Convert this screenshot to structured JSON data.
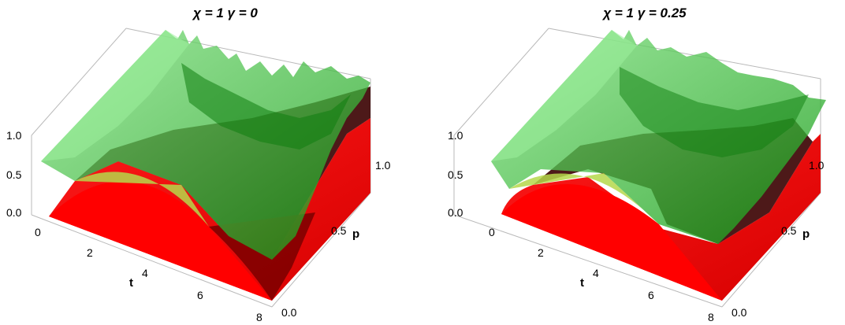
{
  "chart_data": [
    {
      "type": "surface3d",
      "title": "χ = 1 γ = 0",
      "xlabel": "t",
      "ylabel": "p",
      "zlabel": "",
      "xlim": [
        0,
        8
      ],
      "ylim": [
        0,
        1
      ],
      "zlim": [
        0,
        1
      ],
      "x_ticks": [
        "0",
        "2",
        "4",
        "6",
        "8"
      ],
      "y_ticks": [
        "0.0",
        "0.5",
        "1.0"
      ],
      "z_ticks": [
        "0.0",
        "0.5",
        "1.0"
      ],
      "series": [
        {
          "name": "",
          "color": "#1fc01f",
          "opacity": 0.6,
          "sample_t": [
            0,
            2,
            4,
            6,
            8
          ],
          "sample_p0_height": [
            0.72,
            0.68,
            0.64,
            0.6,
            0.55
          ],
          "sample_p1_height": [
            1.0,
            0.98,
            0.95,
            0.9,
            0.85
          ]
        },
        {
          "name": "",
          "color": "#ff0000",
          "opacity": 1.0,
          "sample_t": [
            0,
            2,
            4,
            6,
            8
          ],
          "sample_p0_height": [
            0.0,
            0.35,
            0.45,
            0.25,
            0.0
          ]
        }
      ]
    },
    {
      "type": "surface3d",
      "title": "χ = 1 γ = 0.25",
      "xlabel": "t",
      "ylabel": "p",
      "zlabel": "",
      "xlim": [
        0,
        8
      ],
      "ylim": [
        0,
        1
      ],
      "zlim": [
        0,
        1
      ],
      "x_ticks": [
        "0",
        "2",
        "4",
        "6",
        "8"
      ],
      "y_ticks": [
        "0.0",
        "0.5",
        "1.0"
      ],
      "z_ticks": [
        "0.0",
        "0.5",
        "1.0"
      ],
      "series": [
        {
          "name": "",
          "color": "#1fc01f",
          "opacity": 0.6,
          "sample_t": [
            0,
            2,
            4,
            6,
            8
          ],
          "sample_p0_height": [
            0.72,
            0.6,
            0.5,
            0.42,
            0.35
          ],
          "sample_p1_height": [
            1.0,
            0.97,
            0.92,
            0.88,
            0.82
          ]
        },
        {
          "name": "",
          "color": "#ff0000",
          "opacity": 1.0,
          "sample_t": [
            0,
            2,
            4,
            6,
            8
          ],
          "sample_p0_height": [
            0.0,
            0.3,
            0.35,
            0.15,
            0.0
          ]
        }
      ]
    }
  ]
}
